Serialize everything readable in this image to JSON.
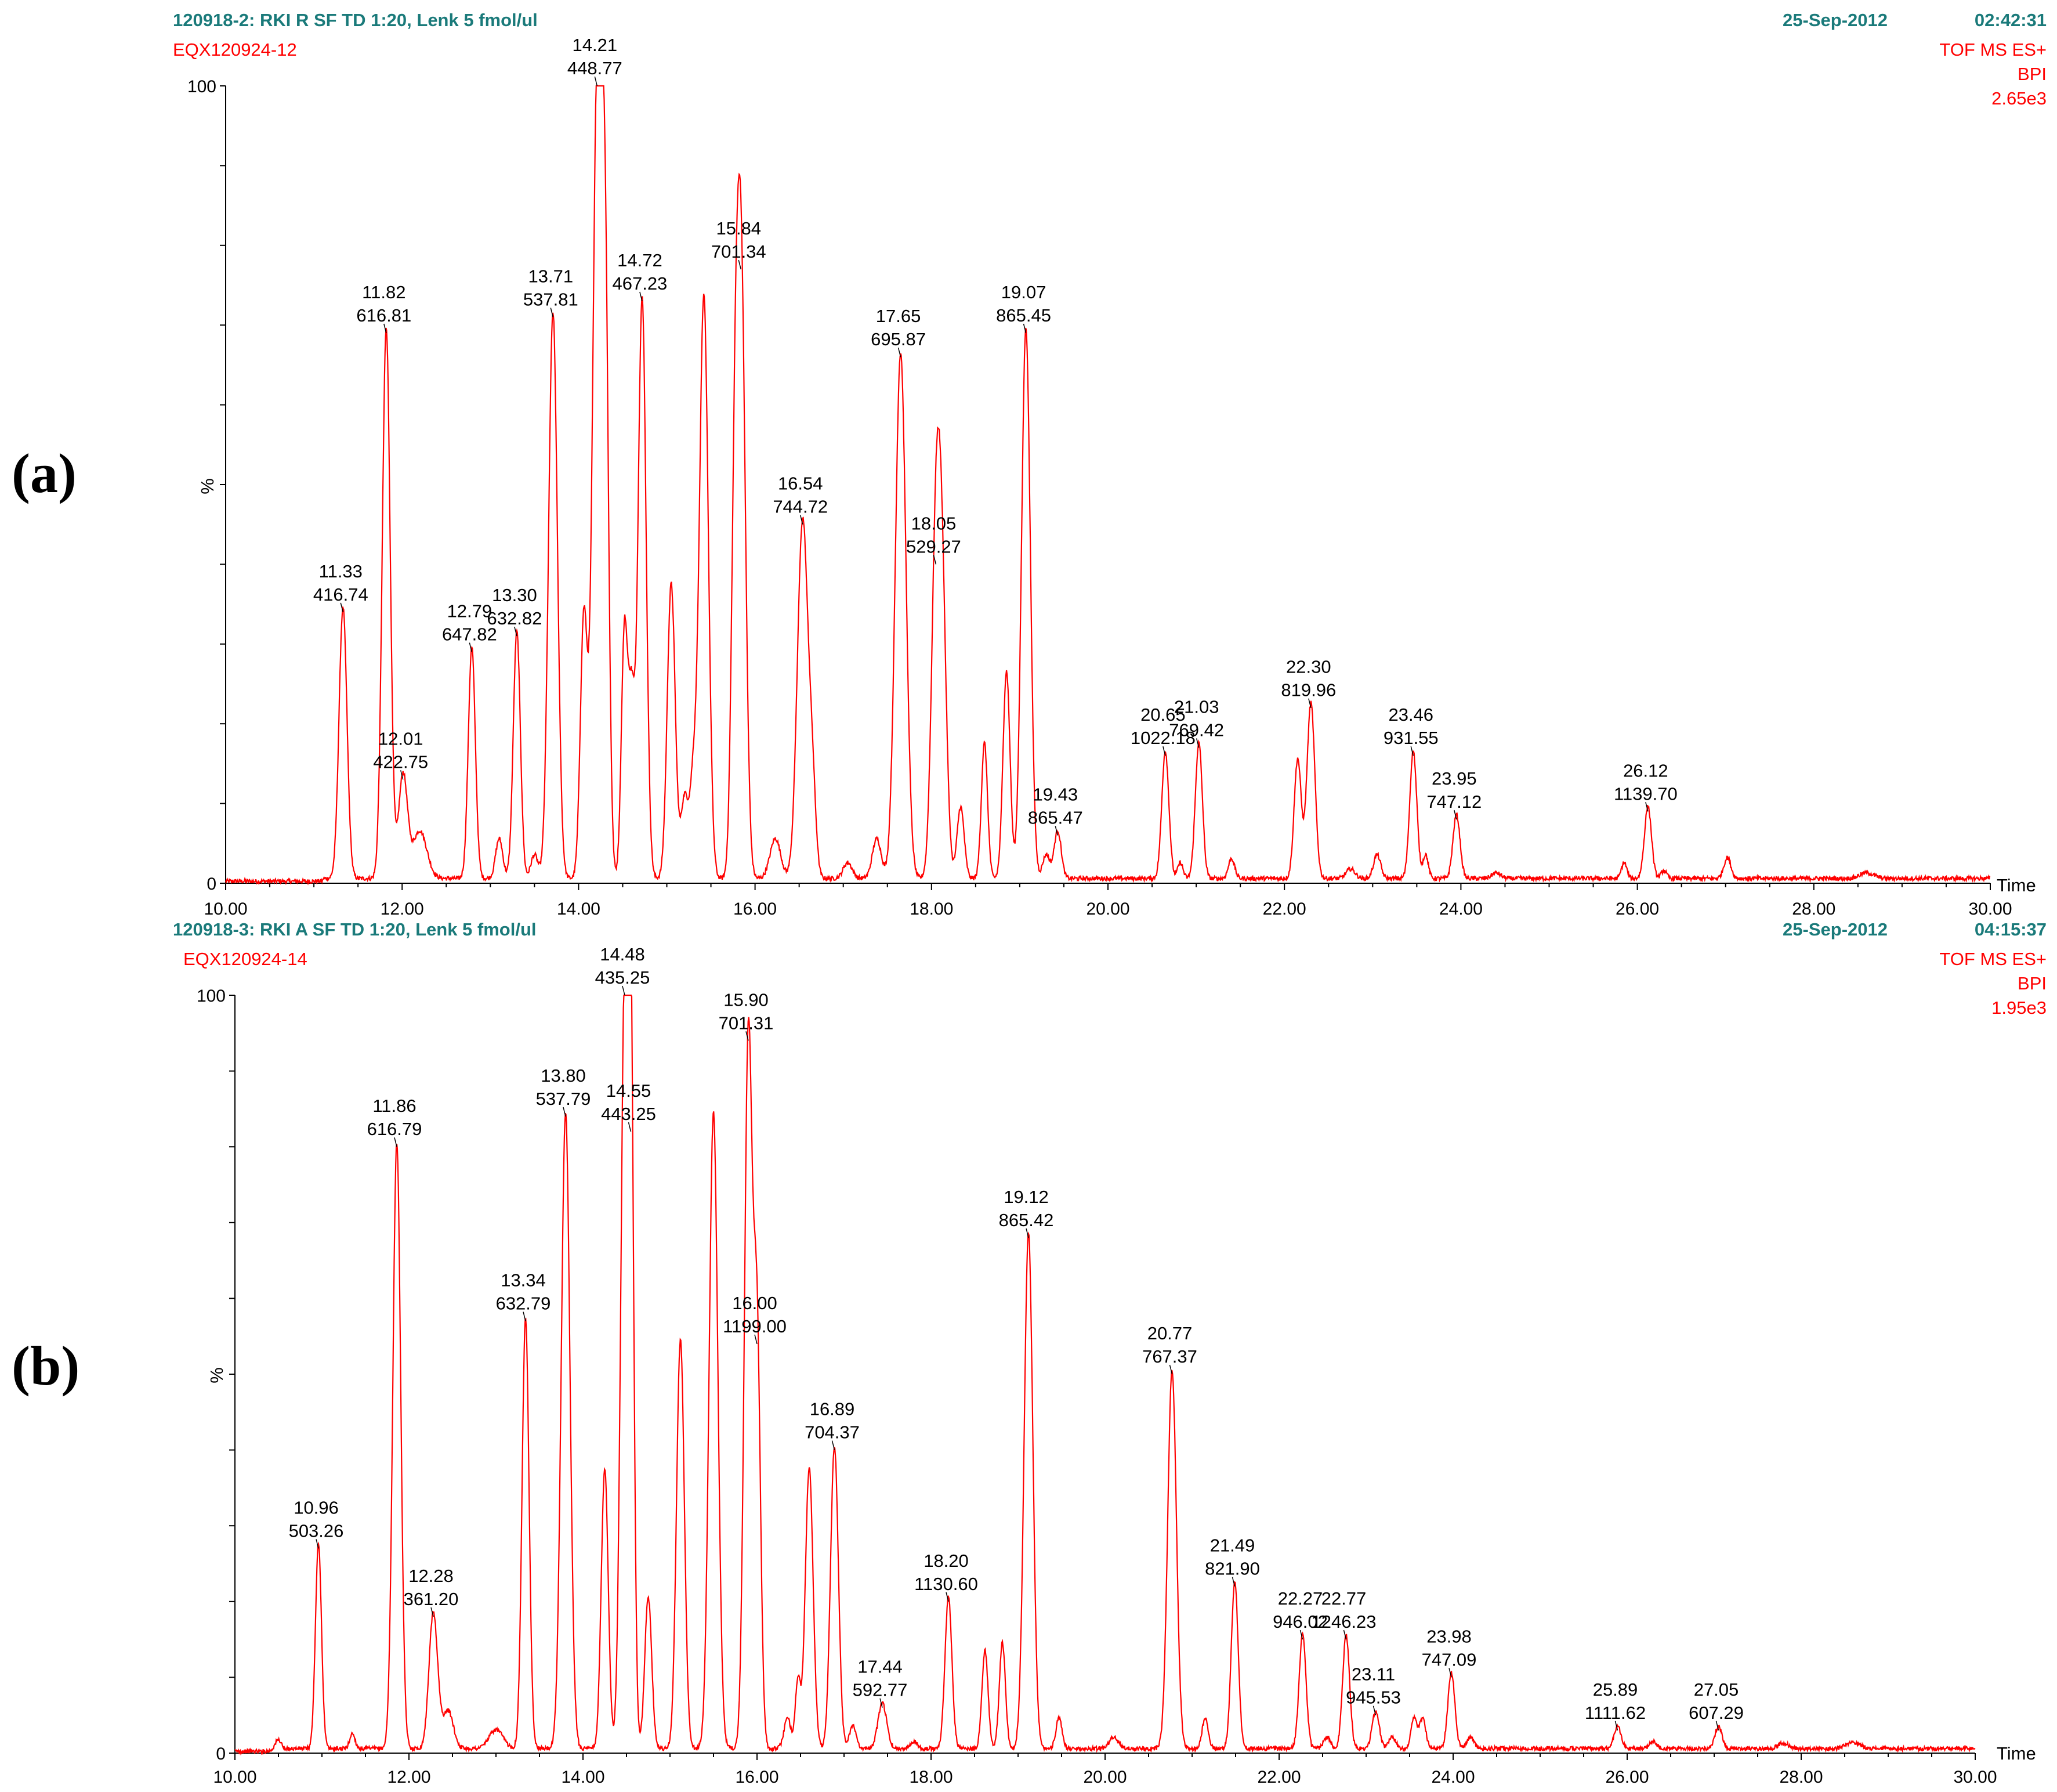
{
  "colors": {
    "trace": "#ff0000",
    "header_teal": "#1a7a7a",
    "axis": "#000000",
    "text": "#000000"
  },
  "chart_data": [
    {
      "type": "line",
      "panel_label": "(a)",
      "header": {
        "sample": "120918-2: RKI R SF TD 1:20, Lenk 5 fmol/ul",
        "file": "EQX120924-12",
        "date": "25-Sep-2012",
        "time": "02:42:31",
        "mode": "TOF MS ES+",
        "trace_type": "BPI",
        "intensity": "2.65e3"
      },
      "xlabel": "Time",
      "ylabel": "%",
      "xlim": [
        10.0,
        30.0
      ],
      "ylim": [
        0,
        100
      ],
      "x_ticks": [
        "10.00",
        "12.00",
        "14.00",
        "16.00",
        "18.00",
        "20.00",
        "22.00",
        "24.00",
        "26.00",
        "28.00",
        "30.00"
      ],
      "y_ticks": [
        "0",
        "100"
      ],
      "peaks": [
        {
          "t": 11.33,
          "y": 34,
          "w": 0.045
        },
        {
          "t": 11.82,
          "y": 69,
          "w": 0.045
        },
        {
          "t": 12.01,
          "y": 13,
          "w": 0.05
        },
        {
          "t": 12.2,
          "y": 6,
          "w": 0.08
        },
        {
          "t": 12.79,
          "y": 29,
          "w": 0.04
        },
        {
          "t": 13.1,
          "y": 5,
          "w": 0.04
        },
        {
          "t": 13.3,
          "y": 31,
          "w": 0.04
        },
        {
          "t": 13.5,
          "y": 3,
          "w": 0.04
        },
        {
          "t": 13.71,
          "y": 71,
          "w": 0.05
        },
        {
          "t": 14.06,
          "y": 33,
          "w": 0.04
        },
        {
          "t": 14.21,
          "y": 100,
          "w": 0.05
        },
        {
          "t": 14.3,
          "y": 72,
          "w": 0.04
        },
        {
          "t": 14.52,
          "y": 31,
          "w": 0.035
        },
        {
          "t": 14.6,
          "y": 22,
          "w": 0.035
        },
        {
          "t": 14.72,
          "y": 73,
          "w": 0.045
        },
        {
          "t": 15.05,
          "y": 37,
          "w": 0.045
        },
        {
          "t": 15.2,
          "y": 10,
          "w": 0.04
        },
        {
          "t": 15.3,
          "y": 12,
          "w": 0.04
        },
        {
          "t": 15.42,
          "y": 73,
          "w": 0.05
        },
        {
          "t": 15.77,
          "y": 38,
          "w": 0.04
        },
        {
          "t": 15.84,
          "y": 77,
          "w": 0.05
        },
        {
          "t": 16.23,
          "y": 5,
          "w": 0.06
        },
        {
          "t": 16.54,
          "y": 45,
          "w": 0.06
        },
        {
          "t": 16.65,
          "y": 10,
          "w": 0.04
        },
        {
          "t": 17.05,
          "y": 2,
          "w": 0.05
        },
        {
          "t": 17.38,
          "y": 5,
          "w": 0.05
        },
        {
          "t": 17.65,
          "y": 66,
          "w": 0.06
        },
        {
          "t": 18.05,
          "y": 40,
          "w": 0.05
        },
        {
          "t": 18.12,
          "y": 32,
          "w": 0.05
        },
        {
          "t": 18.33,
          "y": 9,
          "w": 0.04
        },
        {
          "t": 18.6,
          "y": 17,
          "w": 0.035
        },
        {
          "t": 18.85,
          "y": 26,
          "w": 0.04
        },
        {
          "t": 19.07,
          "y": 69,
          "w": 0.05
        },
        {
          "t": 19.3,
          "y": 3,
          "w": 0.04
        },
        {
          "t": 19.43,
          "y": 6,
          "w": 0.04
        },
        {
          "t": 20.65,
          "y": 16,
          "w": 0.04
        },
        {
          "t": 20.82,
          "y": 2,
          "w": 0.03
        },
        {
          "t": 21.03,
          "y": 17,
          "w": 0.04
        },
        {
          "t": 21.4,
          "y": 2.5,
          "w": 0.035
        },
        {
          "t": 22.15,
          "y": 15,
          "w": 0.04
        },
        {
          "t": 22.3,
          "y": 22,
          "w": 0.045
        },
        {
          "t": 22.75,
          "y": 1.2,
          "w": 0.05
        },
        {
          "t": 23.05,
          "y": 3,
          "w": 0.04
        },
        {
          "t": 23.46,
          "y": 16,
          "w": 0.04
        },
        {
          "t": 23.6,
          "y": 3,
          "w": 0.03
        },
        {
          "t": 23.95,
          "y": 8,
          "w": 0.04
        },
        {
          "t": 24.4,
          "y": 0.7,
          "w": 0.05
        },
        {
          "t": 25.85,
          "y": 2,
          "w": 0.03
        },
        {
          "t": 26.12,
          "y": 9,
          "w": 0.04
        },
        {
          "t": 26.3,
          "y": 1,
          "w": 0.03
        },
        {
          "t": 27.02,
          "y": 2.6,
          "w": 0.04
        },
        {
          "t": 28.6,
          "y": 0.7,
          "w": 0.08
        }
      ],
      "annotations": [
        {
          "rt": "11.33",
          "mz": "416.74",
          "t": 11.33,
          "y": 34
        },
        {
          "rt": "11.82",
          "mz": "616.81",
          "t": 11.82,
          "y": 69
        },
        {
          "rt": "12.01",
          "mz": "422.75",
          "t": 12.01,
          "y": 13
        },
        {
          "rt": "12.79",
          "mz": "647.82",
          "t": 12.79,
          "y": 29
        },
        {
          "rt": "13.30",
          "mz": "632.82",
          "t": 13.3,
          "y": 31
        },
        {
          "rt": "13.71",
          "mz": "537.81",
          "t": 13.71,
          "y": 71
        },
        {
          "rt": "14.21",
          "mz": "448.77",
          "t": 14.21,
          "y": 100
        },
        {
          "rt": "14.72",
          "mz": "467.23",
          "t": 14.72,
          "y": 73
        },
        {
          "rt": "15.84",
          "mz": "701.34",
          "t": 15.84,
          "y": 77
        },
        {
          "rt": "16.54",
          "mz": "744.72",
          "t": 16.54,
          "y": 45
        },
        {
          "rt": "17.65",
          "mz": "695.87",
          "t": 17.65,
          "y": 66
        },
        {
          "rt": "18.05",
          "mz": "529.27",
          "t": 18.05,
          "y": 40
        },
        {
          "rt": "19.07",
          "mz": "865.45",
          "t": 19.07,
          "y": 69
        },
        {
          "rt": "19.43",
          "mz": "865.47",
          "t": 19.43,
          "y": 6
        },
        {
          "rt": "20.65",
          "mz": "1022.18",
          "t": 20.65,
          "y": 16
        },
        {
          "rt": "21.03",
          "mz": "769.42",
          "t": 21.03,
          "y": 17
        },
        {
          "rt": "22.30",
          "mz": "819.96",
          "t": 22.3,
          "y": 22
        },
        {
          "rt": "23.46",
          "mz": "931.55",
          "t": 23.46,
          "y": 16
        },
        {
          "rt": "23.95",
          "mz": "747.12",
          "t": 23.95,
          "y": 8
        },
        {
          "rt": "26.12",
          "mz": "1139.70",
          "t": 26.12,
          "y": 9
        }
      ]
    },
    {
      "type": "line",
      "panel_label": "(b)",
      "header": {
        "sample": "120918-3: RKI A SF TD 1:20, Lenk 5 fmol/ul",
        "file": "EQX120924-14",
        "date": "25-Sep-2012",
        "time": "04:15:37",
        "mode": "TOF MS ES+",
        "trace_type": "BPI",
        "intensity": "1.95e3"
      },
      "xlabel": "Time",
      "ylabel": "%",
      "xlim": [
        10.0,
        30.0
      ],
      "ylim": [
        0,
        100
      ],
      "x_ticks": [
        "10.00",
        "12.00",
        "14.00",
        "16.00",
        "18.00",
        "20.00",
        "22.00",
        "24.00",
        "26.00",
        "28.00",
        "30.00"
      ],
      "y_ticks": [
        "0",
        "100"
      ],
      "peaks": [
        {
          "t": 10.5,
          "y": 1.5,
          "w": 0.04
        },
        {
          "t": 10.96,
          "y": 27,
          "w": 0.035
        },
        {
          "t": 11.35,
          "y": 2,
          "w": 0.03
        },
        {
          "t": 11.86,
          "y": 80,
          "w": 0.045
        },
        {
          "t": 12.28,
          "y": 18,
          "w": 0.05
        },
        {
          "t": 12.45,
          "y": 5,
          "w": 0.06
        },
        {
          "t": 13.0,
          "y": 2.5,
          "w": 0.08
        },
        {
          "t": 13.34,
          "y": 57,
          "w": 0.04
        },
        {
          "t": 13.8,
          "y": 84,
          "w": 0.05
        },
        {
          "t": 14.25,
          "y": 37,
          "w": 0.04
        },
        {
          "t": 14.48,
          "y": 100,
          "w": 0.045
        },
        {
          "t": 14.55,
          "y": 82,
          "w": 0.035
        },
        {
          "t": 14.75,
          "y": 20,
          "w": 0.04
        },
        {
          "t": 15.12,
          "y": 54,
          "w": 0.045
        },
        {
          "t": 15.5,
          "y": 84,
          "w": 0.05
        },
        {
          "t": 15.9,
          "y": 94,
          "w": 0.045
        },
        {
          "t": 16.0,
          "y": 54,
          "w": 0.04
        },
        {
          "t": 16.35,
          "y": 4,
          "w": 0.04
        },
        {
          "t": 16.47,
          "y": 9,
          "w": 0.03
        },
        {
          "t": 16.6,
          "y": 37,
          "w": 0.045
        },
        {
          "t": 16.89,
          "y": 40,
          "w": 0.045
        },
        {
          "t": 17.1,
          "y": 3,
          "w": 0.04
        },
        {
          "t": 17.44,
          "y": 6,
          "w": 0.05
        },
        {
          "t": 17.8,
          "y": 1,
          "w": 0.04
        },
        {
          "t": 18.2,
          "y": 20,
          "w": 0.04
        },
        {
          "t": 18.62,
          "y": 13,
          "w": 0.035
        },
        {
          "t": 18.82,
          "y": 14,
          "w": 0.035
        },
        {
          "t": 19.12,
          "y": 68,
          "w": 0.05
        },
        {
          "t": 19.47,
          "y": 4,
          "w": 0.035
        },
        {
          "t": 20.1,
          "y": 1.5,
          "w": 0.05
        },
        {
          "t": 20.77,
          "y": 50,
          "w": 0.05
        },
        {
          "t": 21.15,
          "y": 4,
          "w": 0.035
        },
        {
          "t": 21.49,
          "y": 22,
          "w": 0.04
        },
        {
          "t": 22.27,
          "y": 15,
          "w": 0.04
        },
        {
          "t": 22.55,
          "y": 1.5,
          "w": 0.04
        },
        {
          "t": 22.77,
          "y": 15,
          "w": 0.04
        },
        {
          "t": 23.11,
          "y": 5,
          "w": 0.04
        },
        {
          "t": 23.3,
          "y": 1.5,
          "w": 0.04
        },
        {
          "t": 23.55,
          "y": 4,
          "w": 0.035
        },
        {
          "t": 23.65,
          "y": 4,
          "w": 0.035
        },
        {
          "t": 23.98,
          "y": 10,
          "w": 0.04
        },
        {
          "t": 24.2,
          "y": 1.5,
          "w": 0.04
        },
        {
          "t": 25.89,
          "y": 3,
          "w": 0.04
        },
        {
          "t": 26.3,
          "y": 1,
          "w": 0.04
        },
        {
          "t": 27.05,
          "y": 3,
          "w": 0.04
        },
        {
          "t": 27.8,
          "y": 0.7,
          "w": 0.06
        },
        {
          "t": 28.6,
          "y": 0.8,
          "w": 0.08
        }
      ],
      "annotations": [
        {
          "rt": "10.96",
          "mz": "503.26",
          "t": 10.96,
          "y": 27
        },
        {
          "rt": "11.86",
          "mz": "616.79",
          "t": 11.86,
          "y": 80
        },
        {
          "rt": "12.28",
          "mz": "361.20",
          "t": 12.28,
          "y": 18
        },
        {
          "rt": "13.34",
          "mz": "632.79",
          "t": 13.34,
          "y": 57
        },
        {
          "rt": "13.80",
          "mz": "537.79",
          "t": 13.8,
          "y": 84
        },
        {
          "rt": "14.48",
          "mz": "435.25",
          "t": 14.48,
          "y": 100
        },
        {
          "rt": "14.55",
          "mz": "443.25",
          "t": 14.55,
          "y": 82
        },
        {
          "rt": "15.90",
          "mz": "701.31",
          "t": 15.9,
          "y": 94
        },
        {
          "rt": "16.00",
          "mz": "1199.00",
          "t": 16.0,
          "y": 54
        },
        {
          "rt": "16.89",
          "mz": "704.37",
          "t": 16.89,
          "y": 40
        },
        {
          "rt": "17.44",
          "mz": "592.77",
          "t": 17.44,
          "y": 6
        },
        {
          "rt": "18.20",
          "mz": "1130.60",
          "t": 18.2,
          "y": 20
        },
        {
          "rt": "19.12",
          "mz": "865.42",
          "t": 19.12,
          "y": 68
        },
        {
          "rt": "20.77",
          "mz": "767.37",
          "t": 20.77,
          "y": 50
        },
        {
          "rt": "21.49",
          "mz": "821.90",
          "t": 21.49,
          "y": 22
        },
        {
          "rt": "22.27",
          "mz": "946.02",
          "t": 22.27,
          "y": 15
        },
        {
          "rt": "22.77",
          "mz": "1246.23",
          "t": 22.77,
          "y": 15
        },
        {
          "rt": "23.11",
          "mz": "945.53",
          "t": 23.11,
          "y": 5
        },
        {
          "rt": "23.98",
          "mz": "747.09",
          "t": 23.98,
          "y": 10
        },
        {
          "rt": "25.89",
          "mz": "1111.62",
          "t": 25.89,
          "y": 3
        },
        {
          "rt": "27.05",
          "mz": "607.29",
          "t": 27.05,
          "y": 3
        }
      ]
    }
  ]
}
